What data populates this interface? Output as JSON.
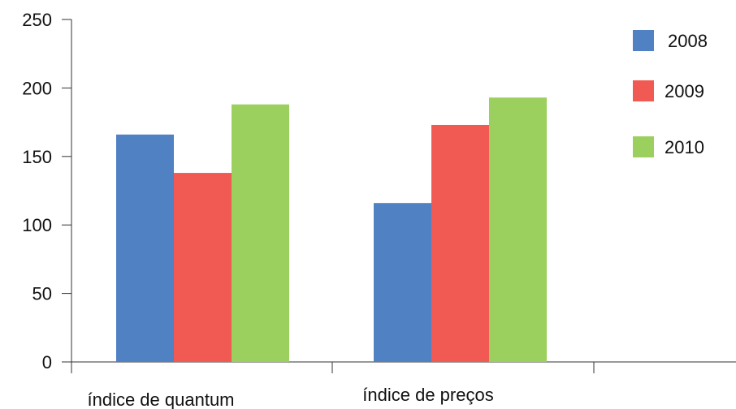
{
  "chart_data": {
    "type": "bar",
    "title": "",
    "xlabel": "",
    "ylabel": "",
    "categories": [
      "índice de quantum",
      "índice de preços"
    ],
    "series": [
      {
        "name": "2008",
        "values": [
          166,
          116
        ],
        "color": "#4f81c3"
      },
      {
        "name": "2009",
        "values": [
          138,
          173
        ],
        "color": "#f15a52"
      },
      {
        "name": "2010",
        "values": [
          188,
          193
        ],
        "color": "#9bcf5e"
      }
    ],
    "ylim": [
      0,
      250
    ],
    "yticks": [
      0,
      50,
      100,
      150,
      200,
      250
    ],
    "grid": false,
    "legend": "top-right"
  }
}
